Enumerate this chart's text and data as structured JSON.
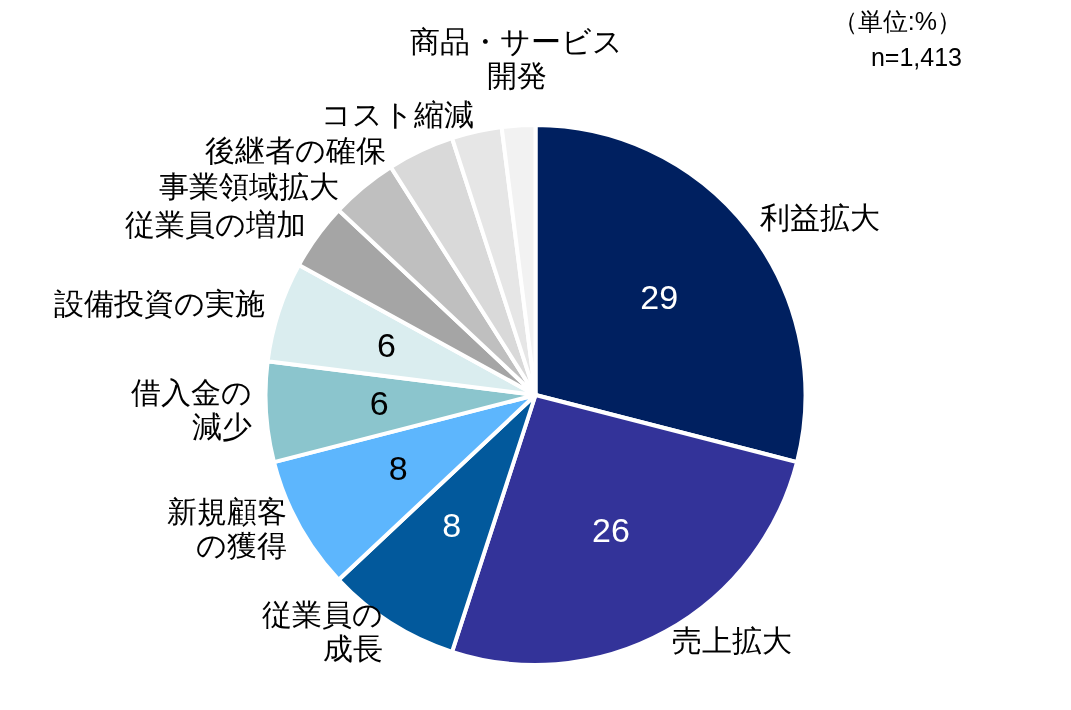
{
  "chart_data": {
    "type": "pie",
    "categories": [
      "利益拡大",
      "売上拡大",
      "従業員の成長",
      "新規顧客の獲得",
      "借入金の減少",
      "設備投資の実施",
      "従業員の増加",
      "事業領域拡大",
      "後継者の確保",
      "コスト縮減",
      "商品・サービス開発"
    ],
    "values": [
      29,
      26,
      8,
      8,
      6,
      6,
      4,
      4,
      4,
      3,
      2
    ],
    "colors": [
      "#002060",
      "#333399",
      "#02599c",
      "#5db6fd",
      "#8bc5cd",
      "#daedef",
      "#a5a5a5",
      "#bfbfbf",
      "#d9d9d9",
      "#e6e6e6",
      "#f2f2f2"
    ],
    "value_labels": [
      "29",
      "26",
      "8",
      "8",
      "6",
      "6",
      null,
      null,
      null,
      null,
      null
    ],
    "annotations": [
      "（単位:%）",
      "n=1,413"
    ]
  }
}
